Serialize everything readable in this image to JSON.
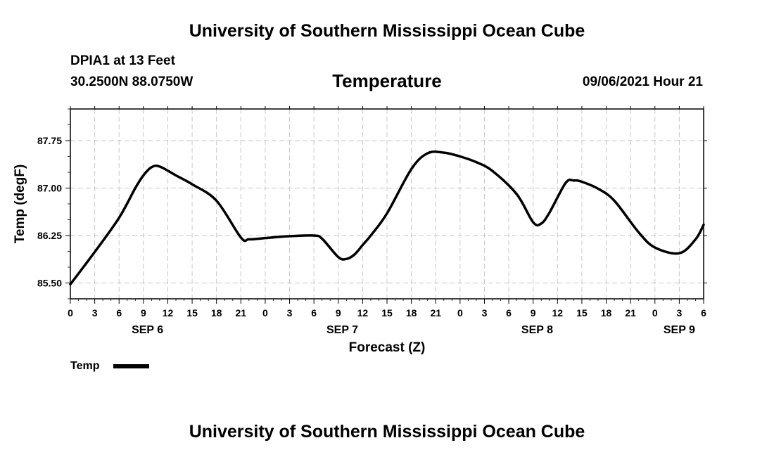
{
  "header": {
    "title_top": "University of Southern Mississippi Ocean Cube",
    "title_bottom": "University of Southern Mississippi Ocean Cube",
    "station": "DPIA1 at 13 Feet",
    "coordinates": "30.2500N  88.0750W",
    "variable": "Temperature",
    "datetime": "09/06/2021 Hour 21"
  },
  "chart_data": {
    "type": "line",
    "title": "Temperature",
    "xlabel": "Forecast (Z)",
    "ylabel": "Temp (degF)",
    "xlim": [
      0,
      78
    ],
    "ylim": [
      85.25,
      88.25
    ],
    "x_unit": "hours from SEP 6 00Z",
    "x_tick_labels": [
      "0",
      "3",
      "6",
      "9",
      "12",
      "15",
      "18",
      "21",
      "0",
      "3",
      "6",
      "9",
      "12",
      "15",
      "18",
      "21",
      "0",
      "3",
      "6",
      "9",
      "12",
      "15",
      "18",
      "21",
      "0",
      "3",
      "6"
    ],
    "y_ticks": [
      85.5,
      86.25,
      87.0,
      87.75
    ],
    "y_tick_labels": [
      "85.50",
      "86.25",
      "87.00",
      "87.75"
    ],
    "date_labels": [
      {
        "label": "SEP 6",
        "x": 9.5
      },
      {
        "label": "SEP 7",
        "x": 33.5
      },
      {
        "label": "SEP 8",
        "x": 57.5
      },
      {
        "label": "SEP 9",
        "x": 75
      }
    ],
    "grid": true,
    "legend_position": "bottom-left",
    "series": [
      {
        "name": "Temp",
        "color": "#000000",
        "x": [
          0,
          3,
          6,
          8,
          9,
          10,
          11,
          13,
          15,
          18,
          21,
          22,
          24,
          27,
          30,
          31,
          33,
          34,
          35,
          36,
          37,
          39,
          42,
          44,
          46,
          48,
          50,
          52,
          55,
          57,
          58,
          59,
          61,
          62,
          63,
          65,
          67,
          70,
          72,
          75,
          77,
          78
        ],
        "y": [
          85.48,
          85.99,
          86.53,
          87.0,
          87.2,
          87.33,
          87.34,
          87.2,
          87.06,
          86.8,
          86.22,
          86.19,
          86.21,
          86.24,
          86.25,
          86.2,
          85.91,
          85.88,
          85.95,
          86.1,
          86.25,
          86.6,
          87.3,
          87.55,
          87.56,
          87.5,
          87.41,
          87.27,
          86.9,
          86.46,
          86.44,
          86.61,
          87.08,
          87.12,
          87.1,
          86.99,
          86.8,
          86.3,
          86.06,
          85.97,
          86.19,
          86.42
        ]
      }
    ]
  }
}
